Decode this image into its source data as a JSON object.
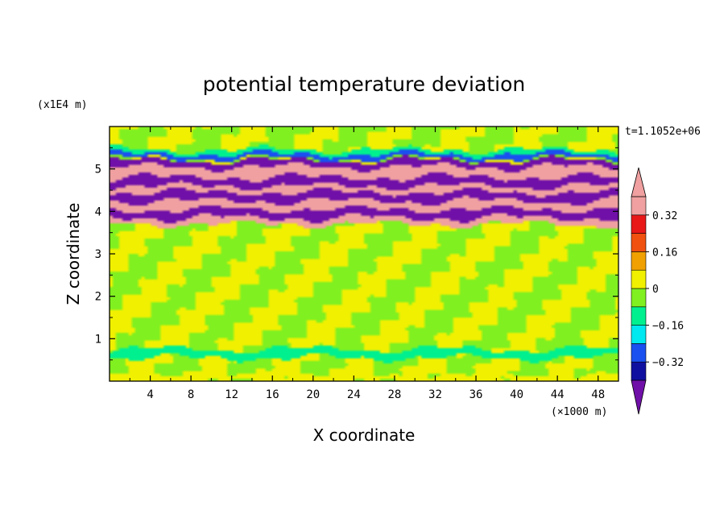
{
  "chart_data": {
    "type": "heatmap",
    "title": "potential temperature deviation",
    "xlabel": "X coordinate",
    "ylabel": "Z coordinate",
    "x_unit": "(×1000 m)",
    "y_unit": "(x1E4 m)",
    "time_label": "t=1.1052e+06",
    "xlim": [
      0,
      50
    ],
    "ylim": [
      0,
      6
    ],
    "x_ticks": [
      4,
      8,
      12,
      16,
      20,
      24,
      28,
      32,
      36,
      40,
      44,
      48
    ],
    "x_tick_labels": [
      "4",
      "8",
      "12",
      "16",
      "20",
      "24",
      "28",
      "32",
      "36",
      "40",
      "44",
      "48"
    ],
    "y_ticks": [
      1,
      2,
      3,
      4,
      5
    ],
    "y_tick_labels": [
      "1",
      "2",
      "3",
      "4",
      "5"
    ],
    "colorbar": {
      "levels": [
        -0.4,
        -0.32,
        -0.24,
        -0.16,
        -0.08,
        0,
        0.08,
        0.16,
        0.24,
        0.32,
        0.4
      ],
      "tick_values": [
        0.32,
        0.16,
        0,
        -0.16,
        -0.32
      ],
      "tick_labels": [
        "0.32",
        "0.16",
        "0",
        "−0.16",
        "−0.32"
      ],
      "colors_low_to_high": [
        "#7010a8",
        "#1010a0",
        "#1a50f0",
        "#00e8f0",
        "#00f090",
        "#80f020",
        "#f0f000",
        "#f0a000",
        "#f05010",
        "#e81818",
        "#f0a0a0"
      ],
      "extend": "both"
    },
    "bands": [
      {
        "z": [
          0.0,
          0.15
        ],
        "value": 0.0
      },
      {
        "z": [
          0.55,
          0.75
        ],
        "value": -0.1
      },
      {
        "z": [
          3.7,
          3.85
        ],
        "value": 0.4
      },
      {
        "z": [
          3.85,
          4.05
        ],
        "value": -0.42
      },
      {
        "z": [
          4.05,
          4.25
        ],
        "value": 0.4
      },
      {
        "z": [
          4.25,
          4.45
        ],
        "value": -0.42
      },
      {
        "z": [
          4.45,
          4.6
        ],
        "value": 0.4
      },
      {
        "z": [
          4.6,
          4.8
        ],
        "value": -0.42
      },
      {
        "z": [
          4.8,
          5.05
        ],
        "value": 0.4
      },
      {
        "z": [
          5.05,
          5.2
        ],
        "value": -0.42
      },
      {
        "z": [
          5.25,
          5.35
        ],
        "value": -0.3
      },
      {
        "z": [
          5.35,
          5.45
        ],
        "value": -0.1
      }
    ]
  }
}
